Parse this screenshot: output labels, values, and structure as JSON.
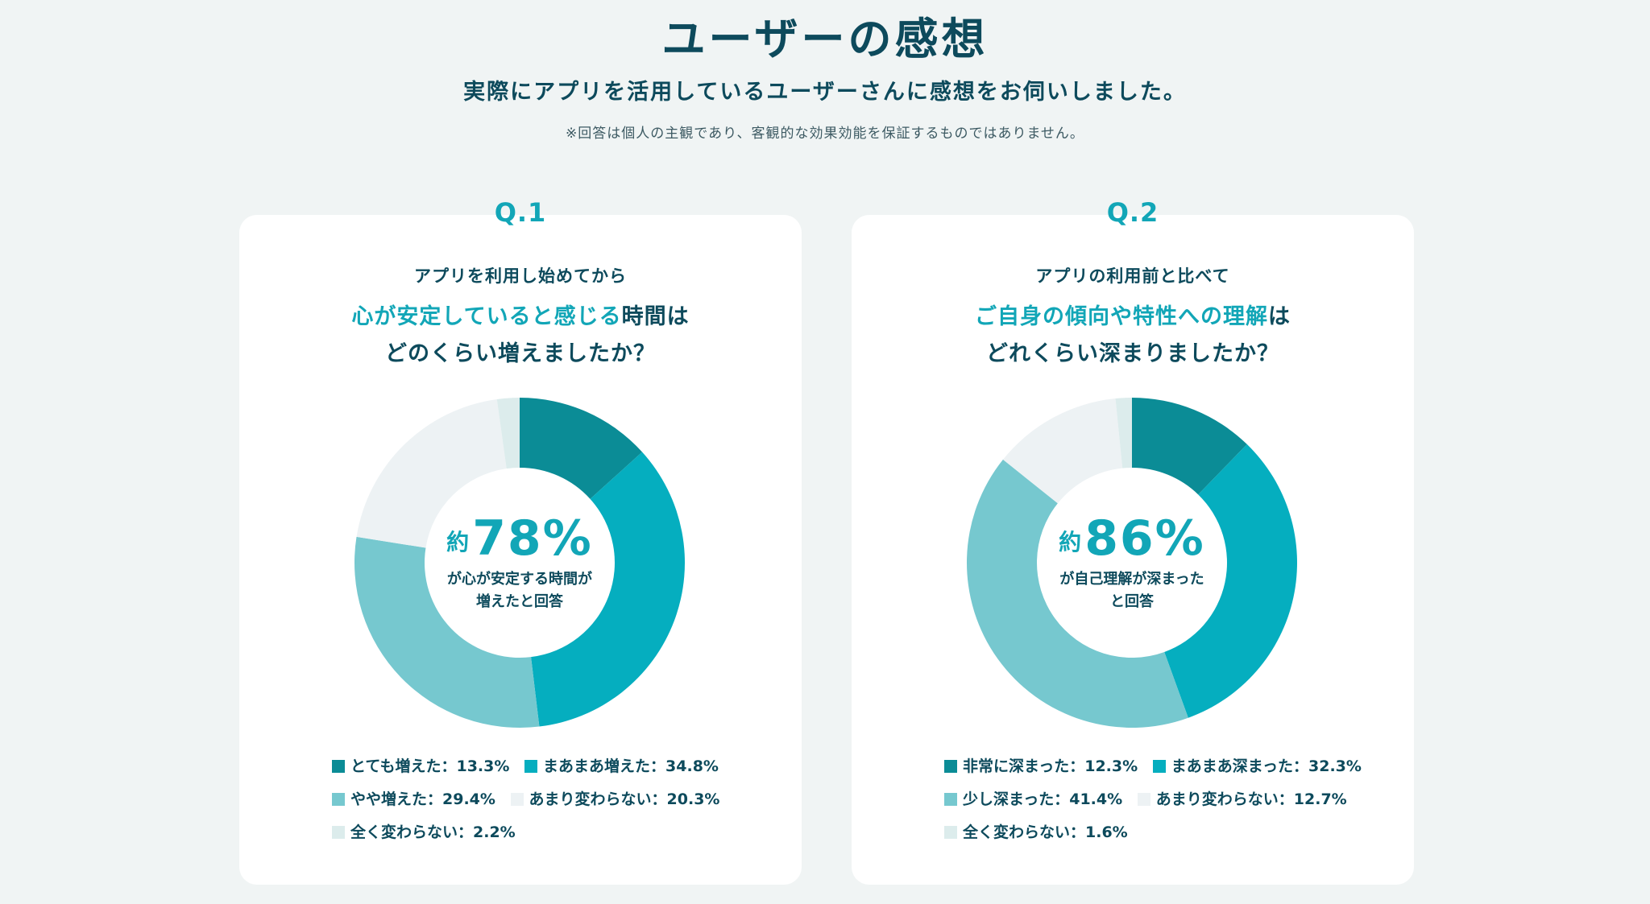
{
  "header": {
    "title": "ユーザーの感想",
    "subtitle": "実際にアプリを活用しているユーザーさんに感想をお伺いしました。",
    "note": "※回答は個人の主観であり、客観的な効果効能を保証するものではありません。"
  },
  "q1": {
    "label": "Q.1",
    "lead": "アプリを利用し始めてから",
    "question_highlight": "心が安定していると感じる",
    "question_rest": "時間は",
    "question_line2": "どのくらい増えましたか？",
    "center_approx": "約",
    "center_pct": "78%",
    "center_caption_1": "が心が安定する時間が",
    "center_caption_2": "増えたと回答",
    "legend": [
      {
        "text": "とても増えた：13.3%"
      },
      {
        "text": "まあまあ増えた：34.8%"
      },
      {
        "text": "やや増えた：29.4%"
      },
      {
        "text": "あまり変わらない：20.3%"
      },
      {
        "text": "全く変わらない：2.2%"
      }
    ]
  },
  "q2": {
    "label": "Q.2",
    "lead": "アプリの利用前と比べて",
    "question_highlight": "ご自身の傾向や特性への理解",
    "question_rest": "は",
    "question_line2": "どれくらい深まりましたか？",
    "center_approx": "約",
    "center_pct": "86%",
    "center_caption_1": "が自己理解が深まった",
    "center_caption_2": "と回答",
    "legend": [
      {
        "text": "非常に深まった：12.3%"
      },
      {
        "text": "まあまあ深まった：32.3%"
      },
      {
        "text": "少し深まった：41.4%"
      },
      {
        "text": "あまり変わらない：12.7%"
      },
      {
        "text": "全く変わらない：1.6%"
      }
    ]
  },
  "chart_data": [
    {
      "type": "pie",
      "categories": [
        "とても増えた",
        "まあまあ増えた",
        "やや増えた",
        "あまり変わらない",
        "全く変わらない"
      ],
      "values": [
        13.3,
        34.8,
        29.4,
        20.3,
        2.2
      ],
      "colors": [
        "#0b8c96",
        "#05aebf",
        "#76c8cf",
        "#edf2f4",
        "#dcecec"
      ]
    },
    {
      "type": "pie",
      "categories": [
        "非常に深まった",
        "まあまあ深まった",
        "少し深まった",
        "あまり変わらない",
        "全く変わらない"
      ],
      "values": [
        12.3,
        32.3,
        41.4,
        12.7,
        1.6
      ],
      "colors": [
        "#0b8c96",
        "#05aebf",
        "#76c8cf",
        "#edf2f4",
        "#dcecec"
      ]
    }
  ]
}
